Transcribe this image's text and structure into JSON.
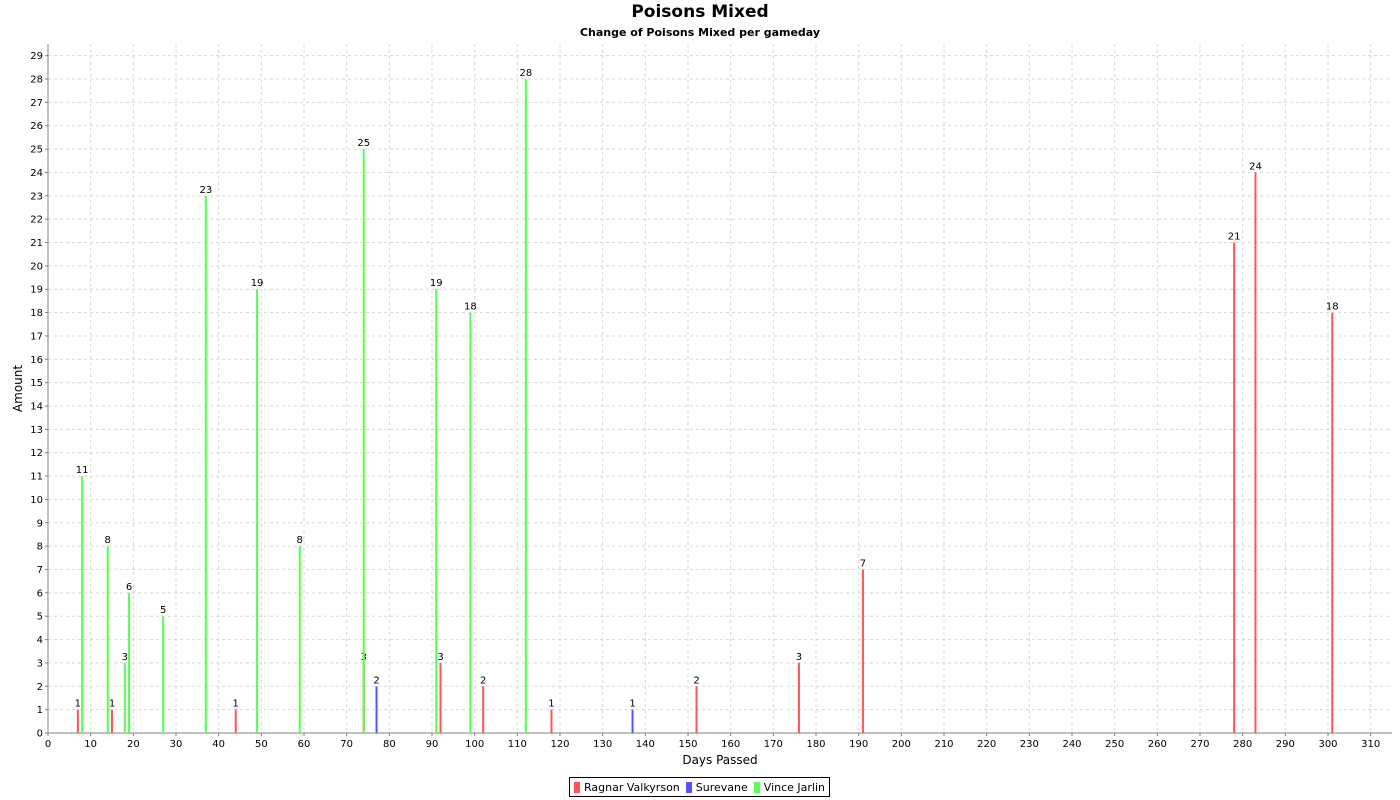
{
  "chart_data": {
    "type": "bar",
    "title": "Poisons Mixed",
    "subtitle": "Change of Poisons Mixed per gameday",
    "xlabel": "Days Passed",
    "ylabel": "Amount",
    "xlim": [
      0,
      315
    ],
    "ylim": [
      0,
      29.5
    ],
    "x_ticks_step": 10,
    "y_ticks_step": 1,
    "grid": true,
    "legend_position": "bottom",
    "series": [
      {
        "name": "Ragnar Valkyrson",
        "color": "#ff5555",
        "points": [
          {
            "x": 7,
            "y": 1
          },
          {
            "x": 15,
            "y": 1
          },
          {
            "x": 44,
            "y": 1
          },
          {
            "x": 74,
            "y": 3
          },
          {
            "x": 92,
            "y": 3
          },
          {
            "x": 102,
            "y": 2
          },
          {
            "x": 118,
            "y": 1
          },
          {
            "x": 152,
            "y": 2
          },
          {
            "x": 176,
            "y": 3
          },
          {
            "x": 191,
            "y": 7
          },
          {
            "x": 278,
            "y": 21
          },
          {
            "x": 283,
            "y": 24
          },
          {
            "x": 301,
            "y": 18
          }
        ]
      },
      {
        "name": "Surevane",
        "color": "#5555ff",
        "points": [
          {
            "x": 77,
            "y": 2
          },
          {
            "x": 137,
            "y": 1
          }
        ]
      },
      {
        "name": "Vince Jarlin",
        "color": "#55ff55",
        "points": [
          {
            "x": 8,
            "y": 11
          },
          {
            "x": 14,
            "y": 8
          },
          {
            "x": 18,
            "y": 3
          },
          {
            "x": 19,
            "y": 6
          },
          {
            "x": 27,
            "y": 5
          },
          {
            "x": 37,
            "y": 23
          },
          {
            "x": 49,
            "y": 19
          },
          {
            "x": 59,
            "y": 8
          },
          {
            "x": 74,
            "y": 25
          },
          {
            "x": 91,
            "y": 19
          },
          {
            "x": 99,
            "y": 18
          },
          {
            "x": 112,
            "y": 28
          }
        ]
      }
    ]
  }
}
